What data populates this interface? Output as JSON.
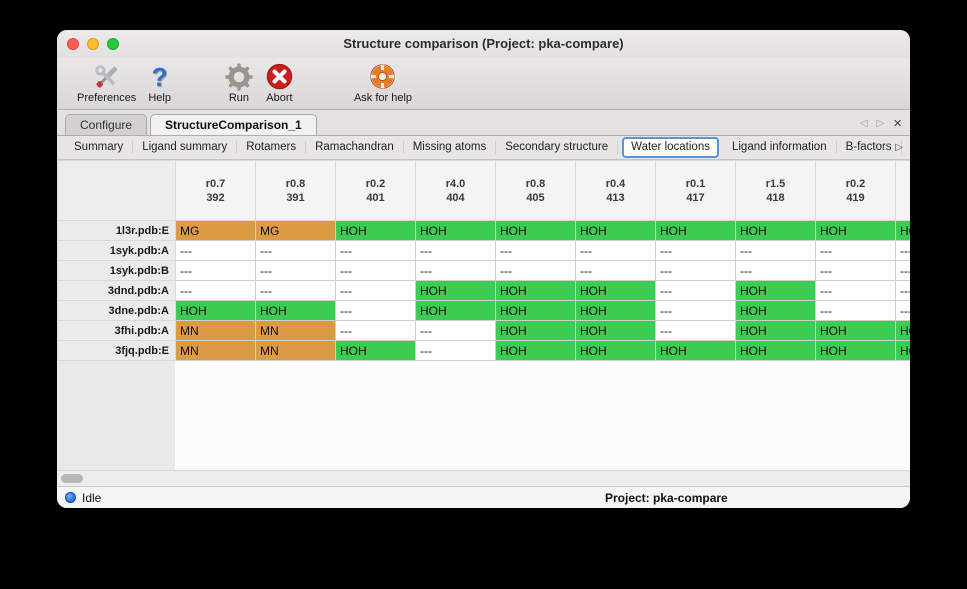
{
  "window": {
    "title": "Structure comparison (Project: pka-compare)"
  },
  "toolbar": {
    "items": [
      {
        "label": "Preferences",
        "icon": "crossed-tools"
      },
      {
        "label": "Help",
        "icon": "question-mark"
      },
      {
        "label": "Run",
        "icon": "gear"
      },
      {
        "label": "Abort",
        "icon": "red-circle-cross"
      },
      {
        "label": "Ask for help",
        "icon": "lifebuoy"
      }
    ]
  },
  "tabs": {
    "items": [
      {
        "label": "Configure",
        "selected": false
      },
      {
        "label": "StructureComparison_1",
        "selected": true
      }
    ],
    "nav": {
      "prev": "◁",
      "next": "▷",
      "close": "×"
    }
  },
  "subtabs": {
    "items": [
      "Summary",
      "Ligand summary",
      "Rotamers",
      "Ramachandran",
      "Missing atoms",
      "Secondary structure",
      "Water locations",
      "Ligand information",
      "B-factors"
    ],
    "selected": "Water locations",
    "nav": {
      "prev": "◁",
      "next": "▷"
    }
  },
  "table": {
    "columns": [
      {
        "line1": "r0.7",
        "line2": "392"
      },
      {
        "line1": "r0.8",
        "line2": "391"
      },
      {
        "line1": "r0.2",
        "line2": "401"
      },
      {
        "line1": "r4.0",
        "line2": "404"
      },
      {
        "line1": "r0.8",
        "line2": "405"
      },
      {
        "line1": "r0.4",
        "line2": "413"
      },
      {
        "line1": "r0.1",
        "line2": "417"
      },
      {
        "line1": "r1.5",
        "line2": "418"
      },
      {
        "line1": "r0.2",
        "line2": "419"
      }
    ],
    "rows": [
      {
        "label": "1l3r.pdb:E",
        "cells": [
          "MG",
          "MG",
          "HOH",
          "HOH",
          "HOH",
          "HOH",
          "HOH",
          "HOH",
          "HOH"
        ],
        "partial": "HOH"
      },
      {
        "label": "1syk.pdb:A",
        "cells": [
          "---",
          "---",
          "---",
          "---",
          "---",
          "---",
          "---",
          "---",
          "---"
        ],
        "partial": "---"
      },
      {
        "label": "1syk.pdb:B",
        "cells": [
          "---",
          "---",
          "---",
          "---",
          "---",
          "---",
          "---",
          "---",
          "---"
        ],
        "partial": "---"
      },
      {
        "label": "3dnd.pdb:A",
        "cells": [
          "---",
          "---",
          "---",
          "HOH",
          "HOH",
          "HOH",
          "---",
          "HOH",
          "---"
        ],
        "partial": "---"
      },
      {
        "label": "3dne.pdb:A",
        "cells": [
          "HOH",
          "HOH",
          "---",
          "HOH",
          "HOH",
          "HOH",
          "---",
          "HOH",
          "---"
        ],
        "partial": "---"
      },
      {
        "label": "3fhi.pdb:A",
        "cells": [
          "MN",
          "MN",
          "---",
          "---",
          "HOH",
          "HOH",
          "---",
          "HOH",
          "HOH"
        ],
        "partial": "HOH"
      },
      {
        "label": "3fjq.pdb:E",
        "cells": [
          "MN",
          "MN",
          "HOH",
          "---",
          "HOH",
          "HOH",
          "HOH",
          "HOH",
          "HOH"
        ],
        "partial": "HOH"
      }
    ]
  },
  "colors": {
    "HOH": "#3ecb52",
    "MG": "#dd9a44",
    "MN": "#dd9a44",
    "---": "#ffffff",
    "selected_subtab_border": "#5596d8",
    "status_dot": "#0b57c4"
  },
  "statusbar": {
    "status": "Idle",
    "project": "Project: pka-compare"
  }
}
